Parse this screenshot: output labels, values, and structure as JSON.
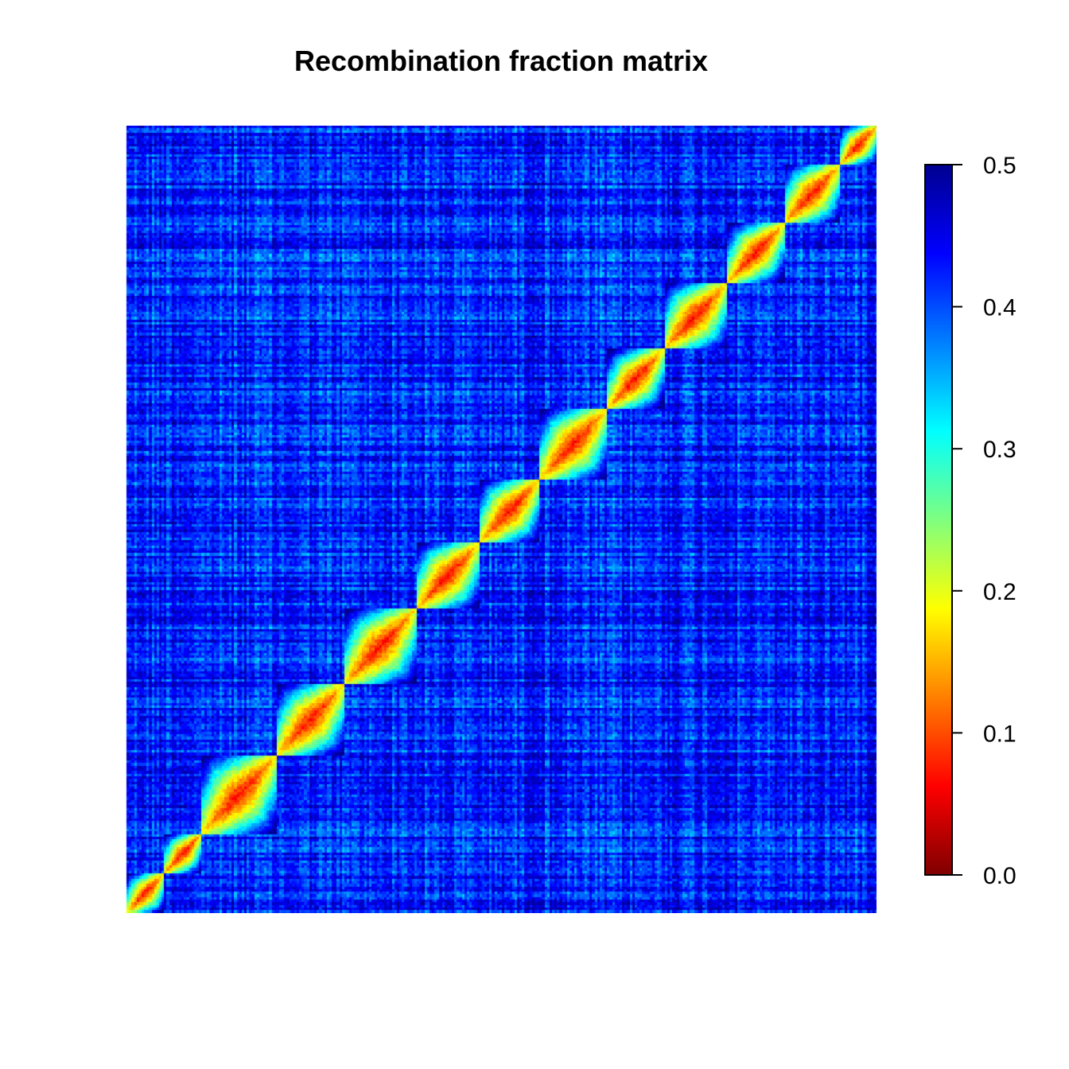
{
  "chart_data": {
    "type": "heatmap",
    "title": "Recombination fraction matrix",
    "xlabel": "",
    "ylabel": "",
    "color_scale": {
      "min": 0.0,
      "max": 0.5,
      "ticks": [
        0.0,
        0.1,
        0.2,
        0.3,
        0.4,
        0.5
      ],
      "tick_labels": [
        "0.0",
        "0.1",
        "0.2",
        "0.3",
        "0.4",
        "0.5"
      ],
      "colors": [
        "#7f0000",
        "#ff0000",
        "#ff7f00",
        "#ffff00",
        "#7fff7f",
        "#00ffff",
        "#007fff",
        "#0000ff",
        "#00008f"
      ]
    },
    "diagonal_blocks": [
      0.0,
      0.05,
      0.1,
      0.2,
      0.29,
      0.385,
      0.47,
      0.55,
      0.64,
      0.715,
      0.8,
      0.875,
      0.95,
      1.0
    ],
    "within_block_value": 0.07,
    "off_block_value": 0.42,
    "grid": false,
    "legend": "right"
  }
}
